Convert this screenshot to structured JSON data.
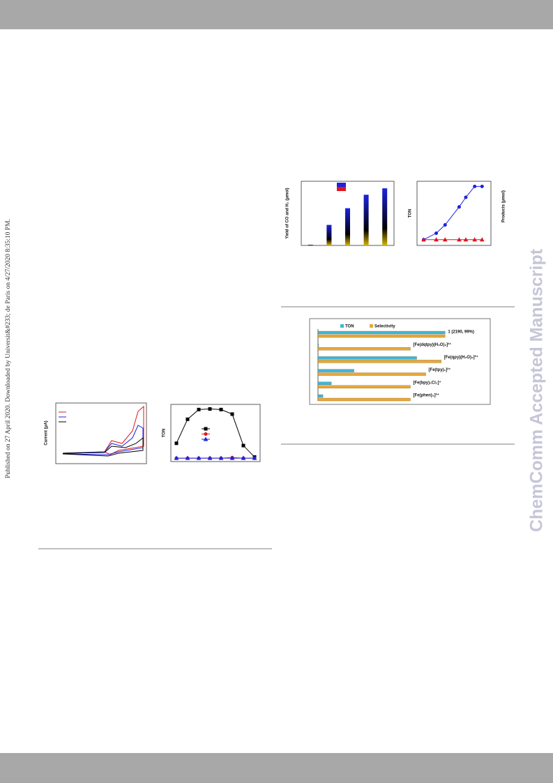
{
  "side_note": "Published on 27 April 2020. Downloaded by Universit&#233; de Paris on 4/27/2020 8:35:10 PM.",
  "watermark": "ChemComm Accepted Manuscript",
  "cv_figure": {
    "y_label": "Current (μA)"
  },
  "chart_data": [
    {
      "type": "bar",
      "y_label": "Yield of CO and H₂ (μmol)",
      "x": [
        1,
        2,
        3,
        4,
        5
      ],
      "xlim": [
        0.5,
        5.5
      ],
      "values": [
        1,
        32,
        58,
        79,
        89
      ],
      "ylim": [
        0,
        100
      ],
      "color": "#1c22e0"
    },
    {
      "type": "line",
      "y_label": "TON",
      "y2_label": "Products (μmol)",
      "x": [
        9,
        26,
        38,
        57,
        66,
        78,
        88
      ],
      "xlim": [
        0,
        100
      ],
      "ylim": [
        0,
        100
      ],
      "series": [
        {
          "color": "#1c22e0",
          "marker": "circle",
          "values": [
            9,
            19,
            32,
            60,
            75,
            92,
            92
          ]
        },
        {
          "color": "#e0141e",
          "marker": "triangle",
          "values": [
            9,
            9,
            9,
            9,
            9,
            9,
            9
          ]
        }
      ]
    },
    {
      "type": "line",
      "y_label": "TON",
      "x": [
        1,
        2,
        3,
        4,
        5,
        6,
        7,
        8
      ],
      "xlim": [
        0.5,
        8.5
      ],
      "ylim": [
        0,
        100
      ],
      "series": [
        {
          "color": "#000000",
          "marker": "square",
          "values": [
            32,
            74,
            91,
            92,
            91,
            83,
            28,
            8
          ]
        },
        {
          "color": "#e0141e",
          "marker": "circle",
          "values": [
            6,
            6,
            6,
            6,
            6,
            7,
            6,
            6
          ]
        },
        {
          "color": "#1c22e0",
          "marker": "triangle",
          "values": [
            6,
            6,
            6,
            6,
            6,
            6,
            6,
            6
          ]
        }
      ]
    },
    {
      "type": "hbar",
      "categories": [
        "1 (2190, 99%)",
        "[Fe(dqtpy)(H₂O)₂]²⁺",
        "[Fe(qpy)(H₂O)₂]²⁺",
        "[Fe(tpy)₂]²⁺",
        "[Fe(bpy)₂Cl₂]⁺",
        "[Fe(phen)₃]²⁺"
      ],
      "series": [
        {
          "name": "TON",
          "color": "#3cb8d8",
          "xlim": [
            0,
            2210
          ],
          "values": [
            2190,
            10,
            1700,
            620,
            230,
            85
          ]
        },
        {
          "name": "Selectivity",
          "color": "#e8a838",
          "xlim": [
            0,
            100
          ],
          "values": [
            99,
            72,
            96,
            84,
            72,
            72
          ]
        }
      ]
    }
  ]
}
